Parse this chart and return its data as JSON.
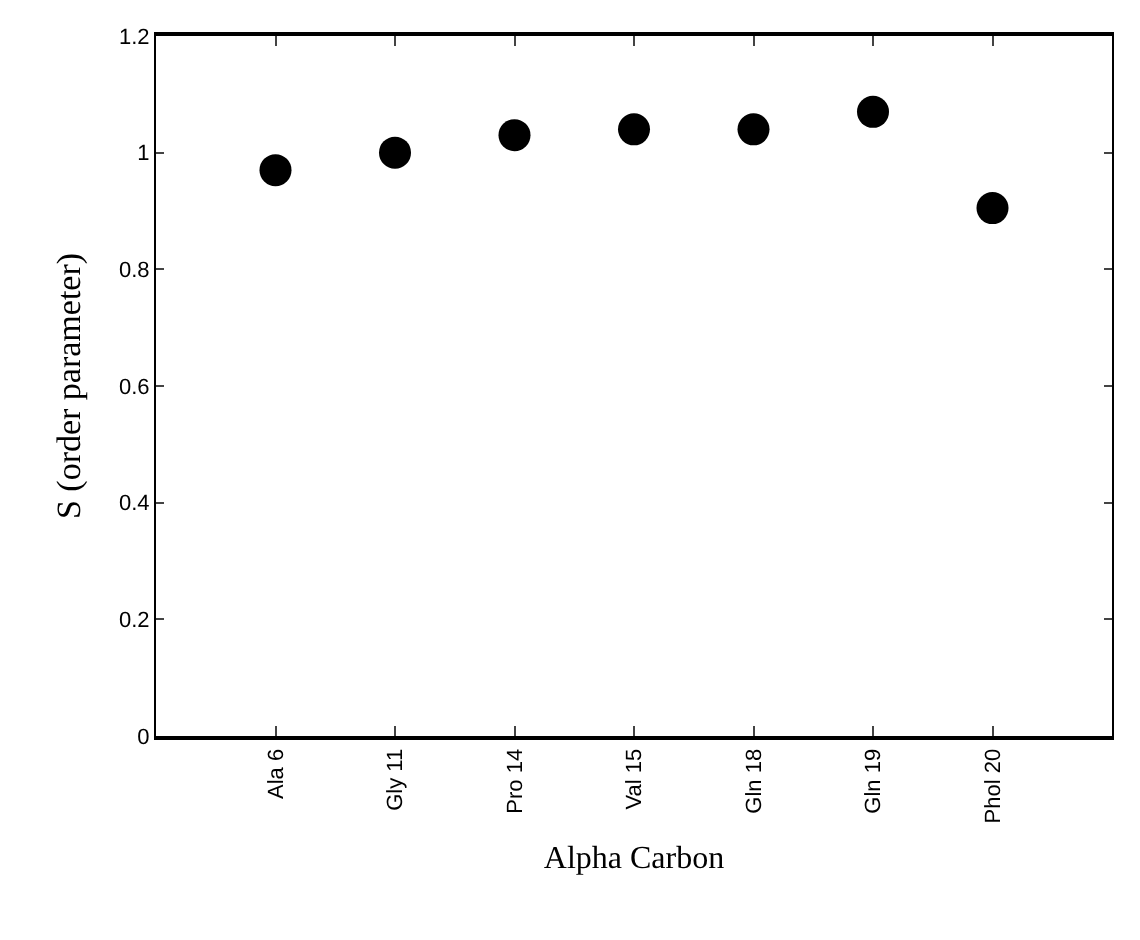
{
  "chart_data": {
    "type": "scatter",
    "xlabel": "Alpha Carbon",
    "ylabel": "S (order parameter)",
    "categories": [
      "Ala 6",
      "Gly 11",
      "Pro 14",
      "Val 15",
      "Gln 18",
      "Gln 19",
      "Phol 20"
    ],
    "values": [
      0.97,
      1.0,
      1.03,
      1.04,
      1.04,
      1.07,
      0.905
    ],
    "color": "#000000",
    "marker": "circle",
    "ylim": [
      0,
      1.2
    ],
    "yticks": [
      0,
      0.2,
      0.4,
      0.6,
      0.8,
      1,
      1.2
    ],
    "grid": false,
    "legend": false
  }
}
